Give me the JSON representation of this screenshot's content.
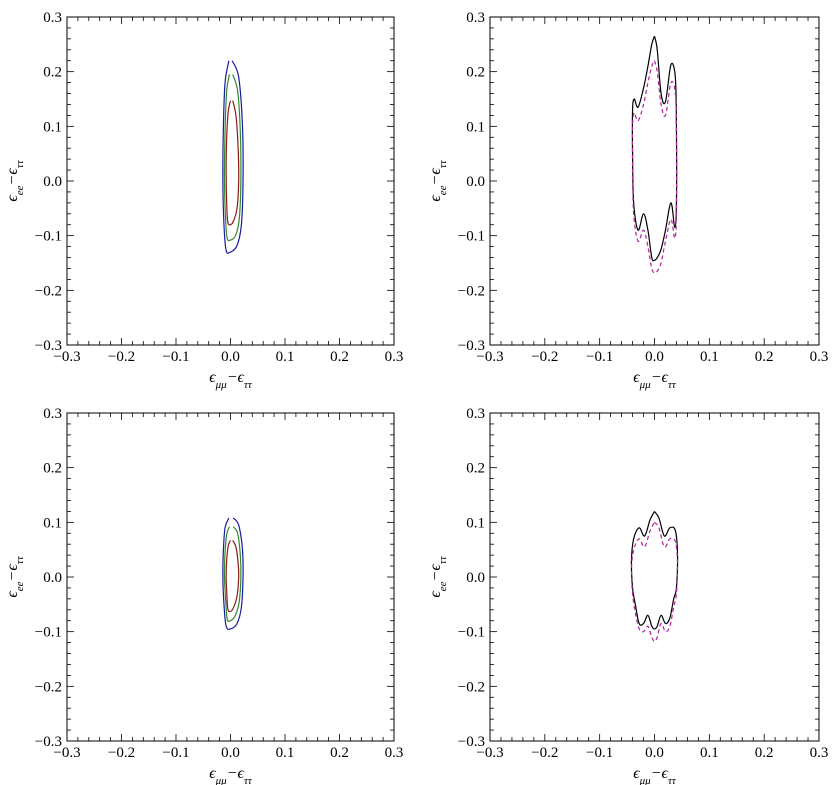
{
  "figure": {
    "panels": [
      "top-left",
      "top-right",
      "bottom-left",
      "bottom-right"
    ]
  },
  "chart_data": [
    {
      "panel": "top-left",
      "type": "contour",
      "xlabel": "ϵμμ−ϵττ",
      "ylabel": "ϵee−ϵττ",
      "xlim": [
        -0.3,
        0.3
      ],
      "ylim": [
        -0.3,
        0.3
      ],
      "xticks": [
        "−0.3",
        "−0.2",
        "−0.1",
        "0.0",
        "0.1",
        "0.2",
        "0.3"
      ],
      "yticks": [
        "−0.3",
        "−0.2",
        "−0.1",
        "0.0",
        "0.1",
        "0.2",
        "0.3"
      ],
      "grid": false,
      "series": [
        {
          "color": "#1a1aa0",
          "style": "solid",
          "x": [
            0.003,
            0.015,
            0.022,
            0.023,
            0.02,
            0.012,
            0.0,
            -0.008,
            -0.012,
            -0.014,
            -0.013,
            -0.01,
            -0.003
          ],
          "y": [
            0.22,
            0.19,
            0.1,
            0.0,
            -0.08,
            -0.118,
            -0.13,
            -0.127,
            -0.08,
            0.0,
            0.1,
            0.18,
            0.22
          ]
        },
        {
          "color": "#2e8b2e",
          "style": "solid",
          "x": [
            0.004,
            0.013,
            0.018,
            0.019,
            0.016,
            0.009,
            0.0,
            -0.006,
            -0.009,
            -0.011,
            -0.01,
            -0.007,
            -0.002
          ],
          "y": [
            0.195,
            0.165,
            0.09,
            0.0,
            -0.07,
            -0.1,
            -0.108,
            -0.105,
            -0.07,
            0.0,
            0.09,
            0.165,
            0.195
          ]
        },
        {
          "color": "#8b1a1a",
          "style": "solid",
          "x": [
            0.004,
            0.01,
            0.014,
            0.015,
            0.012,
            0.006,
            0.0,
            -0.005,
            -0.007,
            -0.008,
            -0.007,
            -0.004,
            0.0
          ],
          "y": [
            0.147,
            0.12,
            0.06,
            0.0,
            -0.05,
            -0.072,
            -0.08,
            -0.075,
            -0.04,
            0.02,
            0.08,
            0.128,
            0.147
          ]
        }
      ]
    },
    {
      "panel": "top-right",
      "type": "contour",
      "xlabel": "ϵμμ−ϵττ",
      "ylabel": "ϵee−ϵττ",
      "xlim": [
        -0.3,
        0.3
      ],
      "ylim": [
        -0.3,
        0.3
      ],
      "xticks": [
        "−0.3",
        "−0.2",
        "−0.1",
        "0.0",
        "0.1",
        "0.2",
        "0.3"
      ],
      "yticks": [
        "−0.3",
        "−0.2",
        "−0.1",
        "0.0",
        "0.1",
        "0.2",
        "0.3"
      ],
      "grid": false,
      "series": [
        {
          "color": "#000000",
          "style": "solid",
          "x": [
            0.0,
            0.005,
            0.012,
            0.02,
            0.03,
            0.038,
            0.04,
            0.04,
            0.037,
            0.03,
            0.02,
            0.012,
            0.005,
            0.0,
            -0.005,
            -0.012,
            -0.02,
            -0.03,
            -0.038,
            -0.04,
            -0.04,
            -0.037,
            -0.03,
            -0.02,
            -0.012,
            -0.005,
            0.0
          ],
          "y": [
            0.265,
            0.24,
            0.16,
            0.145,
            0.213,
            0.19,
            0.1,
            -0.04,
            -0.085,
            -0.04,
            -0.09,
            -0.125,
            -0.14,
            -0.145,
            -0.14,
            -0.09,
            -0.06,
            -0.09,
            -0.04,
            0.05,
            0.13,
            0.15,
            0.135,
            0.17,
            0.21,
            0.25,
            0.265
          ]
        },
        {
          "color": "#b0229c",
          "style": "dashed",
          "x": [
            0.0,
            0.005,
            0.012,
            0.02,
            0.03,
            0.038,
            0.04,
            0.04,
            0.037,
            0.03,
            0.02,
            0.012,
            0.005,
            0.0,
            -0.005,
            -0.012,
            -0.02,
            -0.03,
            -0.038,
            -0.04,
            -0.04,
            -0.037,
            -0.03,
            -0.02,
            -0.012,
            -0.005,
            0.0
          ],
          "y": [
            0.22,
            0.2,
            0.14,
            0.12,
            0.18,
            0.16,
            0.08,
            -0.06,
            -0.105,
            -0.07,
            -0.11,
            -0.15,
            -0.165,
            -0.168,
            -0.16,
            -0.12,
            -0.09,
            -0.11,
            -0.06,
            0.03,
            0.1,
            0.125,
            0.11,
            0.14,
            0.18,
            0.21,
            0.22
          ]
        }
      ]
    },
    {
      "panel": "bottom-left",
      "type": "contour",
      "xlabel": "ϵμμ−ϵττ",
      "ylabel": "ϵee−ϵττ",
      "xlim": [
        -0.3,
        0.3
      ],
      "ylim": [
        -0.3,
        0.3
      ],
      "xticks": [
        "−0.3",
        "−0.2",
        "−0.1",
        "0.0",
        "0.1",
        "0.2",
        "0.3"
      ],
      "yticks": [
        "−0.3",
        "−0.2",
        "−0.1",
        "0.0",
        "0.1",
        "0.2",
        "0.3"
      ],
      "grid": false,
      "series": [
        {
          "color": "#1a1aa0",
          "style": "solid",
          "x": [
            0.005,
            0.015,
            0.022,
            0.023,
            0.02,
            0.012,
            0.0,
            -0.008,
            -0.012,
            -0.014,
            -0.013,
            -0.01,
            -0.003
          ],
          "y": [
            0.108,
            0.095,
            0.05,
            0.0,
            -0.055,
            -0.085,
            -0.095,
            -0.09,
            -0.05,
            0.0,
            0.05,
            0.09,
            0.108
          ]
        },
        {
          "color": "#2e8b2e",
          "style": "solid",
          "x": [
            0.005,
            0.013,
            0.018,
            0.019,
            0.016,
            0.009,
            0.0,
            -0.006,
            -0.009,
            -0.011,
            -0.01,
            -0.007,
            -0.002
          ],
          "y": [
            0.092,
            0.08,
            0.04,
            0.0,
            -0.045,
            -0.07,
            -0.08,
            -0.077,
            -0.04,
            0.0,
            0.045,
            0.078,
            0.092
          ]
        },
        {
          "color": "#8b1a1a",
          "style": "solid",
          "x": [
            0.004,
            0.01,
            0.014,
            0.015,
            0.012,
            0.006,
            0.0,
            -0.005,
            -0.007,
            -0.008,
            -0.007,
            -0.004,
            0.0
          ],
          "y": [
            0.067,
            0.055,
            0.025,
            0.0,
            -0.035,
            -0.055,
            -0.063,
            -0.058,
            -0.025,
            0.0,
            0.03,
            0.058,
            0.067
          ]
        }
      ]
    },
    {
      "panel": "bottom-right",
      "type": "contour",
      "xlabel": "ϵμμ−ϵττ",
      "ylabel": "ϵee−ϵττ",
      "xlim": [
        -0.3,
        0.3
      ],
      "ylim": [
        -0.3,
        0.3
      ],
      "xticks": [
        "−0.3",
        "−0.2",
        "−0.1",
        "0.0",
        "0.1",
        "0.2",
        "0.3"
      ],
      "yticks": [
        "−0.3",
        "−0.2",
        "−0.1",
        "0.0",
        "0.1",
        "0.2",
        "0.3"
      ],
      "grid": false,
      "series": [
        {
          "color": "#000000",
          "style": "solid",
          "x": [
            0.0,
            0.008,
            0.018,
            0.028,
            0.038,
            0.042,
            0.04,
            0.035,
            0.028,
            0.02,
            0.012,
            0.005,
            0.0,
            -0.005,
            -0.012,
            -0.02,
            -0.028,
            -0.035,
            -0.04,
            -0.042,
            -0.038,
            -0.028,
            -0.018,
            -0.008,
            0.0
          ],
          "y": [
            0.12,
            0.108,
            0.075,
            0.09,
            0.085,
            0.04,
            -0.02,
            -0.04,
            -0.075,
            -0.085,
            -0.07,
            -0.09,
            -0.095,
            -0.09,
            -0.07,
            -0.085,
            -0.085,
            -0.05,
            -0.02,
            0.03,
            0.07,
            0.09,
            0.075,
            0.105,
            0.12
          ]
        },
        {
          "color": "#b0229c",
          "style": "dashed",
          "x": [
            0.0,
            0.008,
            0.018,
            0.028,
            0.038,
            0.042,
            0.04,
            0.035,
            0.028,
            0.02,
            0.012,
            0.005,
            0.0,
            -0.005,
            -0.012,
            -0.02,
            -0.028,
            -0.035,
            -0.04,
            -0.042,
            -0.038,
            -0.028,
            -0.018,
            -0.008,
            0.0
          ],
          "y": [
            0.1,
            0.09,
            0.055,
            0.07,
            0.065,
            0.025,
            -0.03,
            -0.055,
            -0.09,
            -0.1,
            -0.085,
            -0.11,
            -0.118,
            -0.11,
            -0.09,
            -0.1,
            -0.095,
            -0.065,
            -0.03,
            0.015,
            0.05,
            0.07,
            0.055,
            0.085,
            0.1
          ]
        }
      ]
    }
  ]
}
